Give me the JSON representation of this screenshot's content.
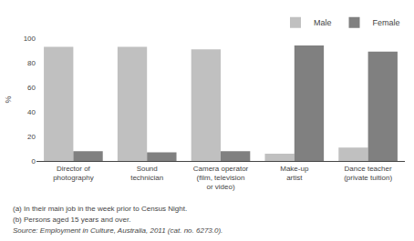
{
  "chart_data": {
    "type": "bar",
    "categories": [
      "Director of\nphotography",
      "Sound\ntechnician",
      "Camera operator\n(film, television\nor video)",
      "Make-up\nartist",
      "Dance teacher\n(private tuition)"
    ],
    "series": [
      {
        "name": "Male",
        "color": "#c0c0c0",
        "values": [
          93,
          93,
          91,
          6,
          11
        ]
      },
      {
        "name": "Female",
        "color": "#808080",
        "values": [
          8,
          7,
          8,
          94,
          89
        ]
      }
    ],
    "ylabel": "%",
    "ylim": [
      0,
      100
    ],
    "yticks": [
      0,
      20,
      40,
      60,
      80,
      100
    ],
    "grid": false,
    "legend": "upper right",
    "annotations": [
      "(a) In their main job in the week prior to Census Night.",
      "(b) Persons aged 15 years and over.",
      "Source: Employment in Culture, Australia, 2011 (cat. no. 6273.0)."
    ]
  }
}
